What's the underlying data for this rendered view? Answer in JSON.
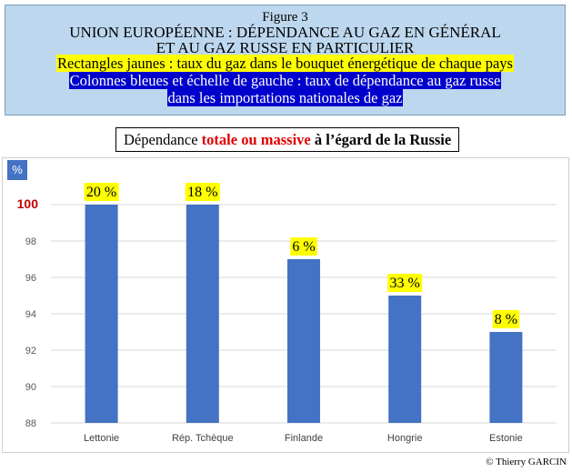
{
  "header": {
    "figure_label": "Figure 3",
    "title_line1": "UNION EUROPÉENNE : DÉPENDANCE AU GAZ EN GÉNÉRAL",
    "title_line2": "ET  AU GAZ RUSSE EN PARTICULIER",
    "legend_yellow": "Rectangles jaunes : taux du gaz dans le bouquet énergétique de chaque pays",
    "legend_blue_line1": "Colonnes bleues  et échelle de gauche : taux de dépendance au gaz russe",
    "legend_blue_line2": "dans les importations nationales de gaz"
  },
  "subtitle": {
    "part1": "Dépendance ",
    "part2": "totale ou massive",
    "part3": " à l’égard de la Russie"
  },
  "unit_label": "%",
  "credit": "© Thierry GARCIN",
  "colors": {
    "bar": "#4472c4",
    "highlight_tick": "#c00000",
    "annotation_bg": "#ffff00",
    "header_bg": "#bdd7ee"
  },
  "chart_data": {
    "type": "bar",
    "categories": [
      "Lettonie",
      "Rép. Tchèque",
      "Finlande",
      "Hongrie",
      "Estonie"
    ],
    "values": [
      100,
      100,
      97,
      95,
      93
    ],
    "annotations": [
      "20 %",
      "18 %",
      "6 %",
      "33 %",
      "8 %"
    ],
    "ylim": [
      88,
      100
    ],
    "yticks": [
      88,
      90,
      92,
      94,
      96,
      98,
      100
    ],
    "grid": true
  }
}
